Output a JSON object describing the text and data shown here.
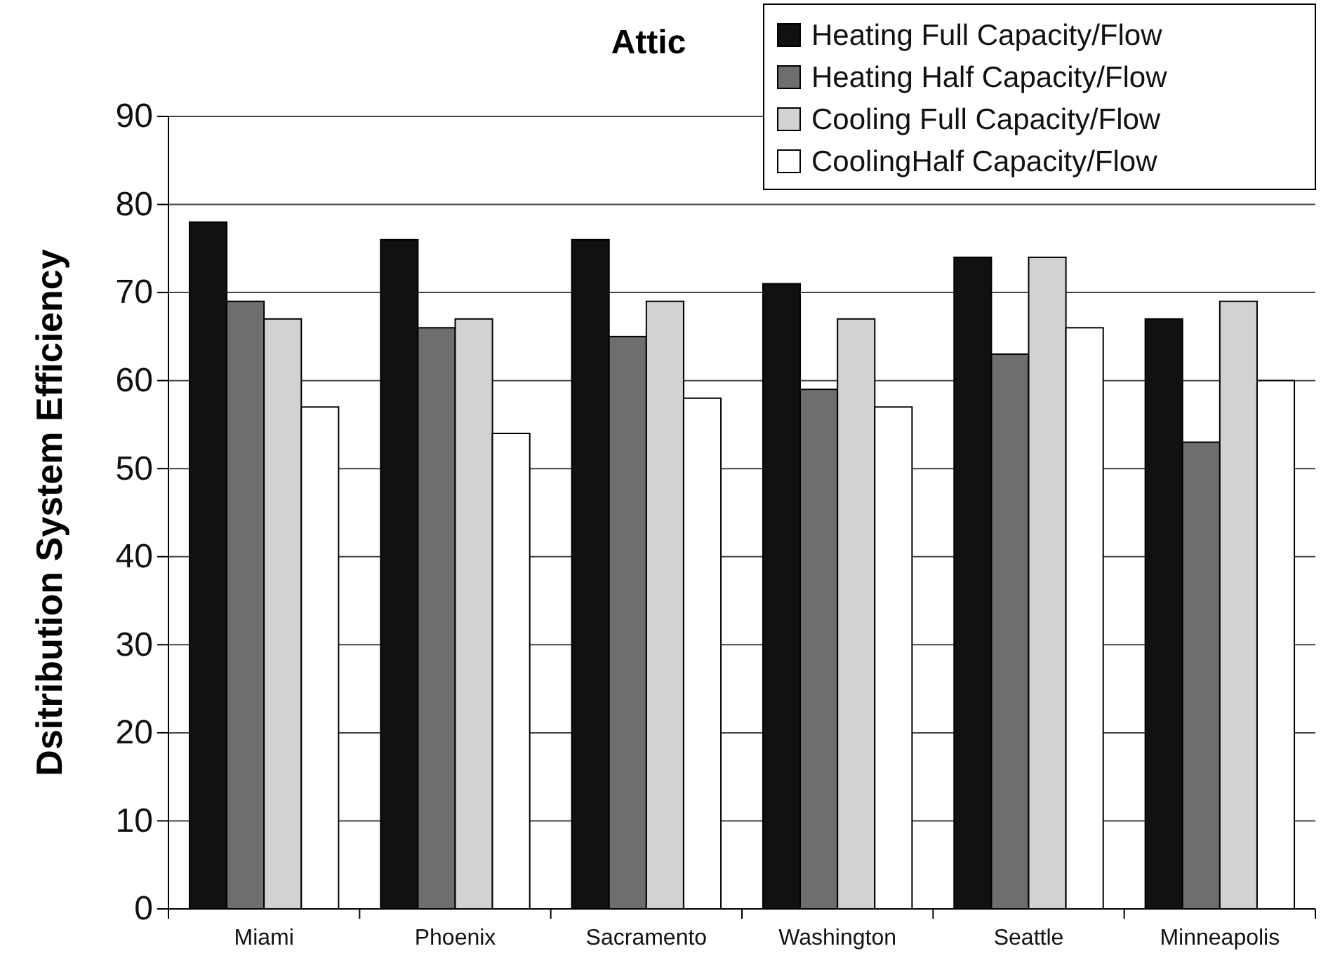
{
  "chart_data": {
    "type": "bar",
    "title": "Attic",
    "ylabel": "Dsitribution System Efficiency",
    "categories": [
      "Miami",
      "Phoenix",
      "Sacramento",
      "Washington",
      "Seattle",
      "Minneapolis"
    ],
    "series": [
      {
        "name": "Heating Full Capacity/Flow",
        "color": "#111111",
        "values": [
          78,
          76,
          76,
          71,
          74,
          67
        ]
      },
      {
        "name": "Heating Half Capacity/Flow",
        "color": "#6e6e6e",
        "values": [
          69,
          66,
          65,
          59,
          63,
          53
        ]
      },
      {
        "name": "Cooling Full Capacity/Flow",
        "color": "#d2d2d2",
        "values": [
          67,
          67,
          69,
          67,
          74,
          69
        ]
      },
      {
        "name": "CoolingHalf Capacity/Flow",
        "color": "#ffffff",
        "values": [
          57,
          54,
          58,
          57,
          66,
          60
        ]
      }
    ],
    "ylim": [
      0,
      90
    ],
    "yticks": [
      0,
      10,
      20,
      30,
      40,
      50,
      60,
      70,
      80,
      90
    ],
    "grid": "y",
    "legend": "top right"
  }
}
